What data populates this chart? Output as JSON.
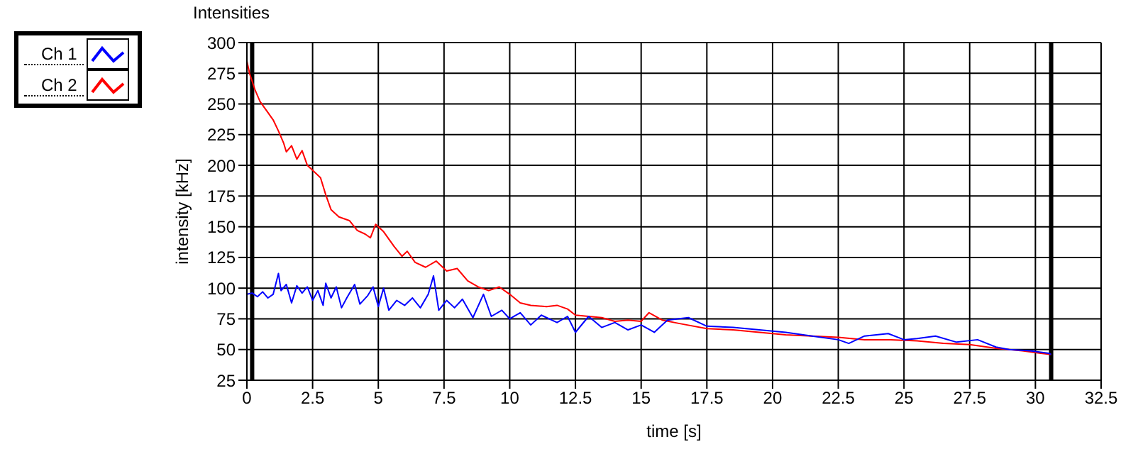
{
  "chart_data": {
    "type": "line",
    "title": "Intensities",
    "xlabel": "time [s]",
    "ylabel": "intensity [kHz]",
    "xlim": [
      0,
      32.5
    ],
    "xticks": [
      0,
      2.5,
      5,
      7.5,
      10,
      12.5,
      15,
      17.5,
      20,
      22.5,
      25,
      27.5,
      30,
      32.5
    ],
    "ylim": [
      25,
      300
    ],
    "yticks": [
      25,
      50,
      75,
      100,
      125,
      150,
      175,
      200,
      225,
      250,
      275,
      300
    ],
    "grid": true,
    "legend": "left",
    "ref_lines": [
      {
        "axis": "x",
        "value": 0.2,
        "color": "#000000"
      },
      {
        "axis": "x",
        "value": 30.6,
        "color": "#000000"
      }
    ],
    "series": [
      {
        "name": "Ch 1",
        "color": "#0000ff",
        "x": [
          0,
          0.2,
          0.4,
          0.6,
          0.8,
          1.0,
          1.2,
          1.3,
          1.5,
          1.7,
          1.9,
          2.1,
          2.3,
          2.5,
          2.7,
          2.9,
          3.0,
          3.2,
          3.4,
          3.6,
          3.8,
          4.1,
          4.3,
          4.6,
          4.8,
          5.0,
          5.2,
          5.4,
          5.7,
          6.0,
          6.3,
          6.6,
          6.9,
          7.1,
          7.3,
          7.6,
          7.9,
          8.2,
          8.6,
          9.0,
          9.3,
          9.7,
          10.0,
          10.4,
          10.8,
          11.2,
          11.8,
          12.2,
          12.5,
          13.0,
          13.5,
          14.0,
          14.5,
          15.0,
          15.5,
          16.0,
          16.8,
          17.5,
          18.5,
          19.5,
          20.5,
          21.5,
          22.5,
          22.9,
          23.5,
          24.4,
          25.0,
          25.5,
          26.2,
          27.0,
          27.8,
          28.5,
          29.0,
          29.8,
          30.5,
          30.6
        ],
        "values": [
          95,
          96,
          93,
          97,
          92,
          95,
          112,
          98,
          103,
          88,
          102,
          96,
          101,
          90,
          98,
          86,
          104,
          92,
          101,
          84,
          92,
          103,
          87,
          94,
          101,
          85,
          100,
          82,
          90,
          86,
          92,
          84,
          95,
          110,
          82,
          90,
          84,
          91,
          76,
          95,
          77,
          82,
          75,
          80,
          70,
          78,
          72,
          77,
          64,
          77,
          68,
          72,
          66,
          70,
          64,
          74,
          76,
          69,
          68,
          66,
          64,
          61,
          58,
          55,
          61,
          63,
          58,
          59,
          61,
          56,
          58,
          52,
          50,
          49,
          47,
          46
        ]
      },
      {
        "name": "Ch 2",
        "color": "#ff0000",
        "x": [
          0,
          0.1,
          0.3,
          0.5,
          0.8,
          1.0,
          1.2,
          1.4,
          1.5,
          1.7,
          1.9,
          2.1,
          2.3,
          2.5,
          2.8,
          3.0,
          3.2,
          3.5,
          3.9,
          4.2,
          4.5,
          4.7,
          4.9,
          5.2,
          5.6,
          5.9,
          6.1,
          6.4,
          6.8,
          7.2,
          7.6,
          8.0,
          8.4,
          8.8,
          9.2,
          9.6,
          10.0,
          10.4,
          10.8,
          11.4,
          11.8,
          12.2,
          12.5,
          13.0,
          13.5,
          14.0,
          14.5,
          15.0,
          15.3,
          15.8,
          16.5,
          17.5,
          18.5,
          19.5,
          20.5,
          21.5,
          22.5,
          23.5,
          24.5,
          25.5,
          26.5,
          27.5,
          28.5,
          29.5,
          30.2,
          30.6
        ],
        "values": [
          285,
          275,
          262,
          252,
          243,
          237,
          228,
          218,
          211,
          216,
          205,
          212,
          200,
          196,
          190,
          176,
          164,
          158,
          155,
          147,
          144,
          141,
          152,
          146,
          134,
          126,
          130,
          121,
          117,
          122,
          114,
          116,
          106,
          101,
          98,
          101,
          95,
          88,
          86,
          85,
          86,
          83,
          78,
          77,
          76,
          73,
          74,
          73,
          80,
          74,
          71,
          67,
          66,
          64,
          62,
          61,
          60,
          58,
          58,
          57,
          55,
          54,
          51,
          49,
          47,
          46
        ]
      }
    ]
  }
}
